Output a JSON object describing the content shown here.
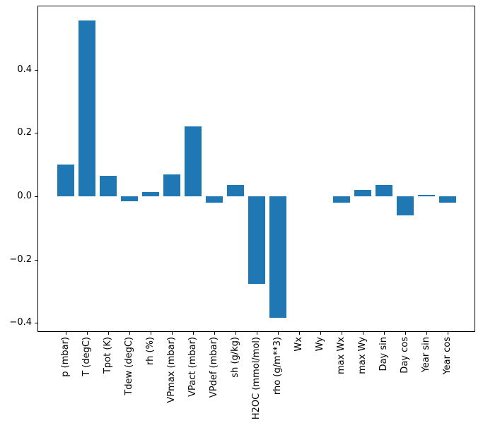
{
  "figure": {
    "background_color": "#ffffff",
    "spine_color": "#000000",
    "text_color": "#000000"
  },
  "chart_data": {
    "type": "bar",
    "title": "",
    "xlabel": "",
    "ylabel": "",
    "categories": [
      "p (mbar)",
      "T (degC)",
      "Tpot (K)",
      "Tdew (degC)",
      "rh (%)",
      "VPmax (mbar)",
      "VPact (mbar)",
      "VPdef (mbar)",
      "sh (g/kg)",
      "H2OC (mmol/mol)",
      "rho (g/m**3)",
      "Wx",
      "Wy",
      "max Wx",
      "max Wy",
      "Day sin",
      "Day cos",
      "Year sin",
      "Year cos"
    ],
    "values": [
      0.1,
      0.555,
      0.065,
      -0.015,
      0.013,
      0.069,
      0.221,
      -0.019,
      0.036,
      -0.277,
      -0.384,
      0.0,
      0.0,
      -0.021,
      0.019,
      0.036,
      -0.06,
      0.004,
      -0.021
    ],
    "bar_color": "#1f77b4",
    "ylim": [
      -0.429,
      0.603
    ],
    "yticks": {
      "values": [
        0.4,
        0.2,
        0.0,
        -0.2,
        -0.4
      ],
      "labels": [
        "0.4",
        "0.2",
        "0.0",
        "−0.2",
        "−0.4"
      ]
    },
    "grid": false,
    "legend": null,
    "x_tick_label_rotation_deg": 90
  }
}
